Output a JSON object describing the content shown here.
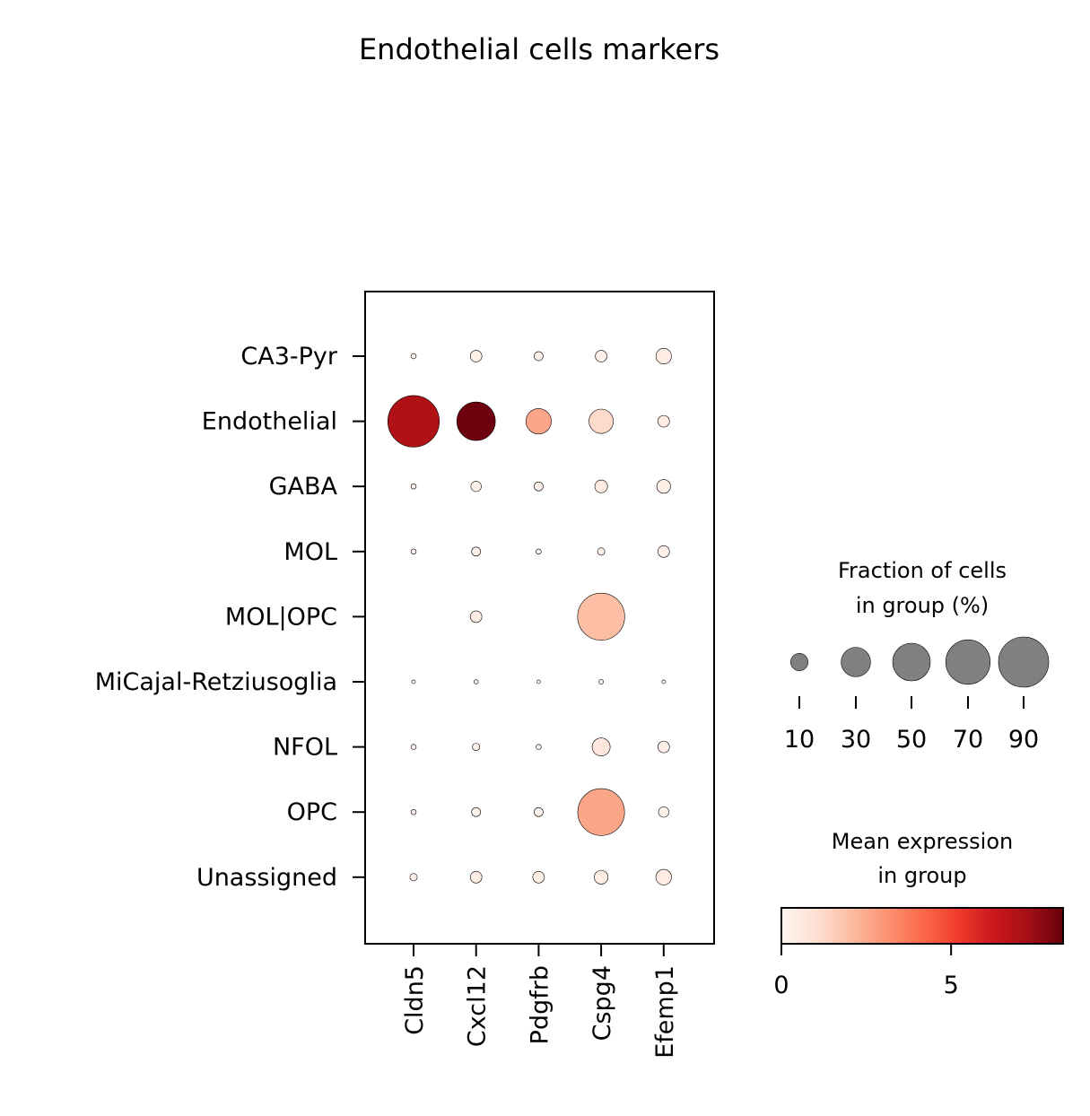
{
  "chart_data": {
    "type": "dotplot",
    "title": "Endothelial cells markers",
    "genes": [
      "Cldn5",
      "Cxcl12",
      "Pdgfrb",
      "Cspg4",
      "Efemp1"
    ],
    "groups": [
      "CA3-Pyr",
      "Endothelial",
      "GABA",
      "MOL",
      "MOL|OPC",
      "MiCajal-Retziusoglia",
      "NFOL",
      "OPC",
      "Unassigned"
    ],
    "fraction_pct": [
      [
        1,
        5,
        3,
        5,
        9
      ],
      [
        98,
        55,
        24,
        22,
        5
      ],
      [
        1,
        4,
        3,
        6,
        7
      ],
      [
        1,
        3,
        1,
        2,
        5
      ],
      [
        0,
        5,
        0,
        82,
        0
      ],
      [
        0.5,
        0.7,
        0.5,
        0.8,
        0.5
      ],
      [
        1,
        2,
        1,
        12,
        5
      ],
      [
        1,
        3,
        3,
        81,
        4
      ],
      [
        2,
        5,
        5,
        7,
        9
      ]
    ],
    "mean_expression": [
      [
        0.1,
        0.3,
        0.2,
        0.3,
        0.4
      ],
      [
        7.0,
        8.2,
        2.6,
        1.2,
        0.4
      ],
      [
        0.1,
        0.2,
        0.2,
        0.4,
        0.3
      ],
      [
        0.1,
        0.2,
        0.1,
        0.2,
        0.3
      ],
      [
        0,
        0.4,
        0,
        2.0,
        0
      ],
      [
        0.1,
        0.1,
        0.1,
        0.1,
        0.1
      ],
      [
        0.1,
        0.1,
        0.1,
        0.7,
        0.3
      ],
      [
        0.1,
        0.1,
        0.1,
        2.6,
        0.2
      ],
      [
        0.2,
        0.4,
        0.3,
        0.4,
        0.4
      ]
    ],
    "size_legend": {
      "title": [
        "Fraction of cells",
        "in group (%)"
      ],
      "values": [
        10,
        30,
        50,
        70,
        90
      ],
      "color": "#808080"
    },
    "color_legend": {
      "title": [
        "Mean expression",
        "in group"
      ],
      "range": [
        0,
        8.3
      ],
      "ticks": [
        0,
        5
      ],
      "colormap": "Reds",
      "stops": [
        "#fff5f0",
        "#fee0d2",
        "#fcbba1",
        "#fc9272",
        "#fb6a4a",
        "#ef3b2c",
        "#cb181d",
        "#a50f15",
        "#67000d"
      ]
    }
  }
}
